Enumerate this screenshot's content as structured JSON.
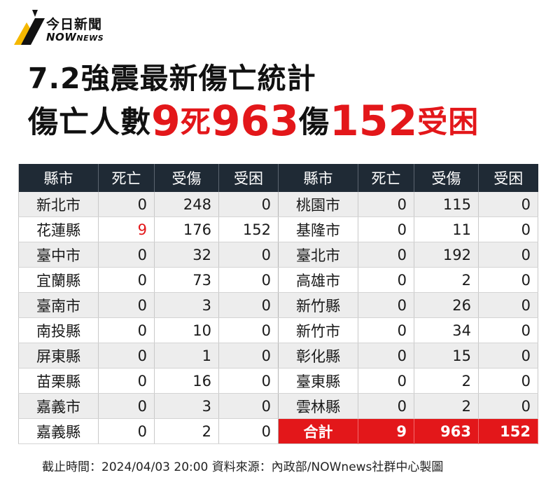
{
  "logo": {
    "name_cn": "今日新聞",
    "name_en_main": "NOW",
    "name_en_small": "NEWS"
  },
  "title_line1": "7.2強震最新傷亡統計",
  "title_line2": {
    "prefix": "傷亡人數",
    "deaths": "9",
    "deaths_unit": "死",
    "injured": "963",
    "injured_unit": "傷",
    "trapped": "152",
    "trapped_unit": "受困"
  },
  "table": {
    "headers": [
      "縣市",
      "死亡",
      "受傷",
      "受困",
      "縣市",
      "死亡",
      "受傷",
      "受困"
    ],
    "rows": [
      {
        "left": [
          "新北市",
          "0",
          "248",
          "0"
        ],
        "right": [
          "桃園市",
          "0",
          "115",
          "0"
        ]
      },
      {
        "left": [
          "花蓮縣",
          "9",
          "176",
          "152"
        ],
        "right": [
          "基隆市",
          "0",
          "11",
          "0"
        ]
      },
      {
        "left": [
          "臺中市",
          "0",
          "32",
          "0"
        ],
        "right": [
          "臺北市",
          "0",
          "192",
          "0"
        ]
      },
      {
        "left": [
          "宜蘭縣",
          "0",
          "73",
          "0"
        ],
        "right": [
          "高雄市",
          "0",
          "2",
          "0"
        ]
      },
      {
        "left": [
          "臺南市",
          "0",
          "3",
          "0"
        ],
        "right": [
          "新竹縣",
          "0",
          "26",
          "0"
        ]
      },
      {
        "left": [
          "南投縣",
          "0",
          "10",
          "0"
        ],
        "right": [
          "新竹市",
          "0",
          "34",
          "0"
        ]
      },
      {
        "left": [
          "屏東縣",
          "0",
          "1",
          "0"
        ],
        "right": [
          "彰化縣",
          "0",
          "15",
          "0"
        ]
      },
      {
        "left": [
          "苗栗縣",
          "0",
          "16",
          "0"
        ],
        "right": [
          "臺東縣",
          "0",
          "2",
          "0"
        ]
      },
      {
        "left": [
          "嘉義市",
          "0",
          "3",
          "0"
        ],
        "right": [
          "雲林縣",
          "0",
          "2",
          "0"
        ]
      },
      {
        "left": [
          "嘉義縣",
          "0",
          "2",
          "0"
        ],
        "right": [
          "合計",
          "9",
          "963",
          "152"
        ]
      }
    ]
  },
  "footer": "截止時間：2024/04/03  20:00   資料來源：內政部/NOWnews社群中心製圖",
  "colors": {
    "accent_red": "#e3171a",
    "header_dark": "#1f2a35",
    "logo_yellow": "#f5b800"
  }
}
